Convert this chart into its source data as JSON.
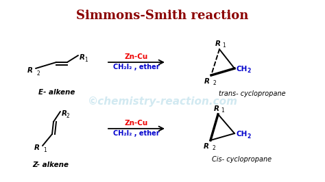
{
  "title": "Simmons-Smith reaction",
  "title_color": "#8B0000",
  "title_fontsize": 13,
  "bg_color": "#FFFFFF",
  "watermark": "©chemistry-reaction.com",
  "watermark_color": "#ADD8E6",
  "watermark_alpha": 0.55,
  "reagent_zn": "Zn-Cu",
  "reagent_ch": "CH₂I₂ , ether",
  "reagent_red": "#EE0000",
  "reagent_blue": "#0000CC",
  "label_E": "E- alkene",
  "label_Z": "Z- alkene",
  "label_trans": "trans- cyclopropane",
  "label_cis": "Cis- cyclopropane"
}
